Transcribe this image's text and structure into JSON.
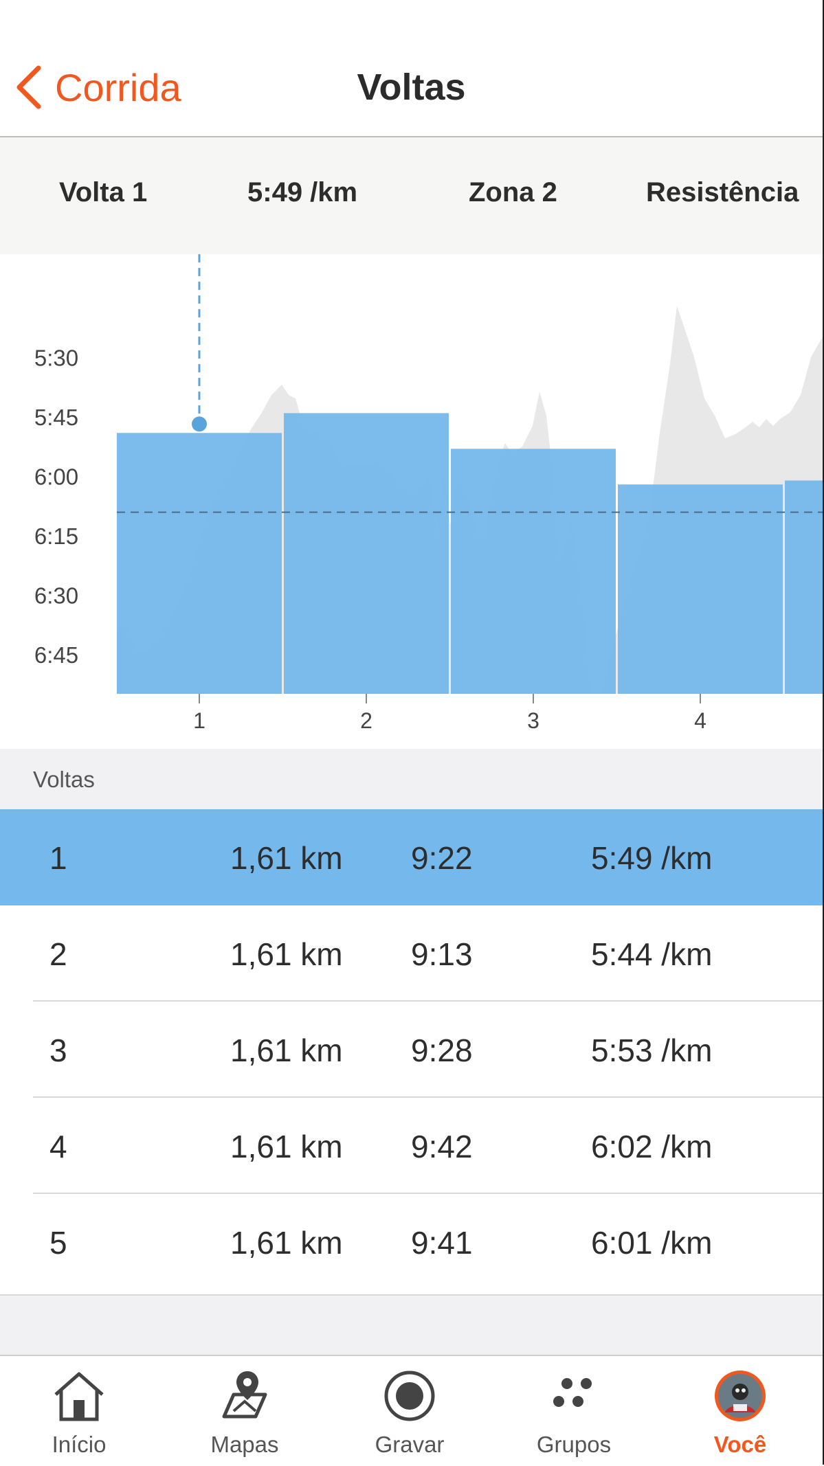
{
  "header": {
    "back_label": "Corrida",
    "title": "Voltas"
  },
  "summary": {
    "lap": "Volta 1",
    "pace": "5:49 /km",
    "zone": "Zona 2",
    "type": "Resistência"
  },
  "chart_data": {
    "type": "bar",
    "categories": [
      "1",
      "2",
      "3",
      "4",
      "5"
    ],
    "values": [
      "5:49",
      "5:44",
      "5:53",
      "6:02",
      "6:01"
    ],
    "y_ticks": [
      "5:30",
      "5:45",
      "6:00",
      "6:15",
      "6:30",
      "6:45"
    ],
    "ylim_seconds": [
      320,
      410
    ],
    "y_inverted": true,
    "reference_line": "6:09",
    "bar_color": "#74b8ec",
    "elevation_color": "#e8e8e8",
    "selected_category": "1"
  },
  "laps_section": {
    "label": "Voltas"
  },
  "laps": [
    {
      "lap": "1",
      "distance": "1,61 km",
      "time": "9:22",
      "pace": "5:49 /km",
      "selected": true
    },
    {
      "lap": "2",
      "distance": "1,61 km",
      "time": "9:13",
      "pace": "5:44 /km"
    },
    {
      "lap": "3",
      "distance": "1,61 km",
      "time": "9:28",
      "pace": "5:53 /km"
    },
    {
      "lap": "4",
      "distance": "1,61 km",
      "time": "9:42",
      "pace": "6:02 /km"
    },
    {
      "lap": "5",
      "distance": "1,61 km",
      "time": "9:41",
      "pace": "6:01 /km"
    }
  ],
  "tabs": [
    {
      "label": "Início",
      "icon": "home-icon"
    },
    {
      "label": "Mapas",
      "icon": "map-icon"
    },
    {
      "label": "Gravar",
      "icon": "record-icon"
    },
    {
      "label": "Grupos",
      "icon": "groups-icon"
    },
    {
      "label": "Você",
      "icon": "avatar",
      "active": true
    }
  ],
  "colors": {
    "accent": "#f0581f",
    "selection": "#74b8ec"
  }
}
